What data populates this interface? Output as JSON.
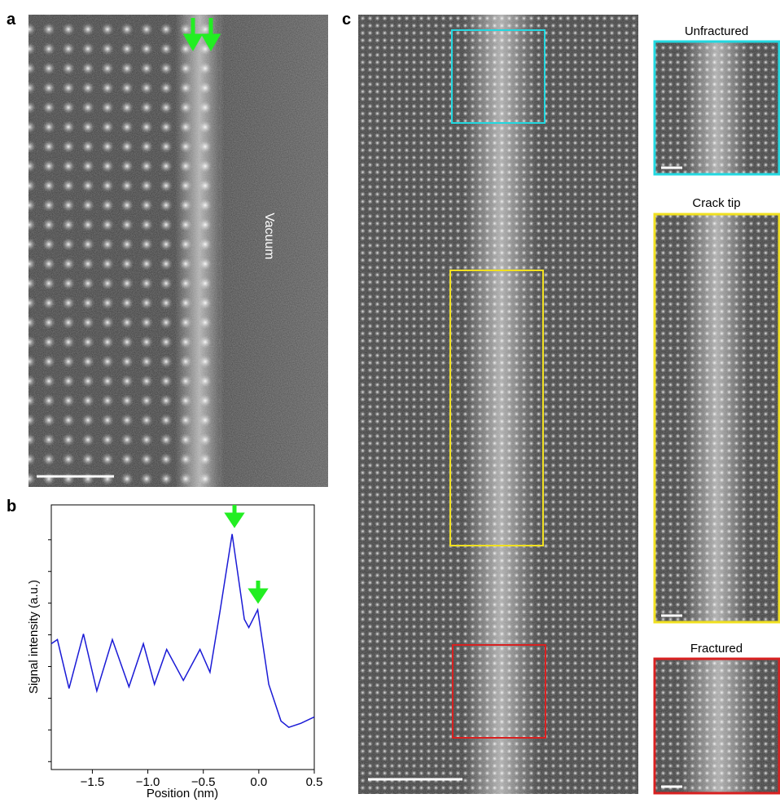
{
  "panels": {
    "a": "a",
    "b": "b",
    "c": "c"
  },
  "vacuum_label": "Vacuum",
  "insets": [
    "Unfractured",
    "Crack tip",
    "Fractured"
  ],
  "chart_data": {
    "type": "line",
    "x_label": "Position (nm)",
    "y_label": "Signal intensity (a.u.)",
    "x": [
      -1.87,
      -1.815,
      -1.71,
      -1.58,
      -1.46,
      -1.32,
      -1.17,
      -1.04,
      -0.94,
      -0.83,
      -0.68,
      -0.53,
      -0.44,
      -0.35,
      -0.24,
      -0.13,
      -0.09,
      -0.01,
      0.09,
      0.2,
      0.27,
      0.38,
      0.5
    ],
    "series": [
      {
        "color": "#1a1ad6",
        "values": [
          4.72,
          4.85,
          3.31,
          5.03,
          3.23,
          4.85,
          3.36,
          4.72,
          3.44,
          4.54,
          3.56,
          4.54,
          3.82,
          5.74,
          8.18,
          5.49,
          5.23,
          5.79,
          3.44,
          2.28,
          2.08,
          2.21,
          2.41
        ]
      }
    ],
    "xlim": [
      -1.87,
      0.5
    ],
    "xticks": [
      {
        "value": -1.5,
        "label": "−1.5"
      },
      {
        "value": -1.0,
        "label": "−1.0"
      },
      {
        "value": -0.5,
        "label": "−0.5"
      },
      {
        "value": 0,
        "label": "0.0"
      },
      {
        "value": 0.5,
        "label": "0.5"
      }
    ],
    "ylim": [
      0.75,
      9.1
    ],
    "yticks": [
      1,
      2,
      3,
      4,
      5,
      6,
      7,
      8
    ]
  }
}
